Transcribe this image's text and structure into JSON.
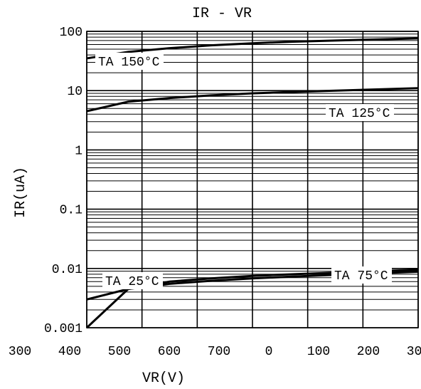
{
  "chart_data": {
    "type": "line",
    "title": "IR - VR",
    "xlabel": "VR(V)",
    "ylabel": "IR(uA)",
    "yscale": "log",
    "ylim": [
      0.001,
      100
    ],
    "xlim": [
      0,
      800
    ],
    "grid": true,
    "ytick_labels": [
      "100",
      "10",
      "1",
      "0.1",
      "0.01",
      "0.001"
    ],
    "xtick_labels": [
      "300",
      "400",
      "500",
      "600",
      "700",
      "0",
      "100",
      "200",
      "300"
    ],
    "series": [
      {
        "name": "TA 150°C",
        "x": [
          0,
          100,
          200,
          300,
          400,
          500,
          600,
          700,
          800
        ],
        "y": [
          35,
          45,
          52,
          58,
          63,
          67,
          70,
          73,
          76
        ]
      },
      {
        "name": "TA 125°C",
        "x": [
          0,
          100,
          200,
          300,
          400,
          500,
          600,
          700,
          800
        ],
        "y": [
          4.5,
          6.5,
          7.5,
          8.3,
          9.0,
          9.5,
          10.0,
          10.5,
          11.0
        ]
      },
      {
        "name": "TA 25°C",
        "x": [
          0,
          100,
          200,
          300,
          400,
          500,
          600,
          700,
          800
        ],
        "y": [
          0.003,
          0.0045,
          0.0055,
          0.0062,
          0.0068,
          0.0073,
          0.0078,
          0.0083,
          0.0088
        ]
      },
      {
        "name": "TA 75°C",
        "x": [
          0,
          100,
          200,
          300,
          400,
          500,
          600,
          700,
          800
        ],
        "y": [
          0.001,
          0.0045,
          0.006,
          0.0068,
          0.0075,
          0.008,
          0.0085,
          0.009,
          0.0095
        ]
      }
    ],
    "annotations": [
      "TA 150°C",
      "TA 125°C",
      "TA 25°C",
      "TA 75°C"
    ]
  }
}
